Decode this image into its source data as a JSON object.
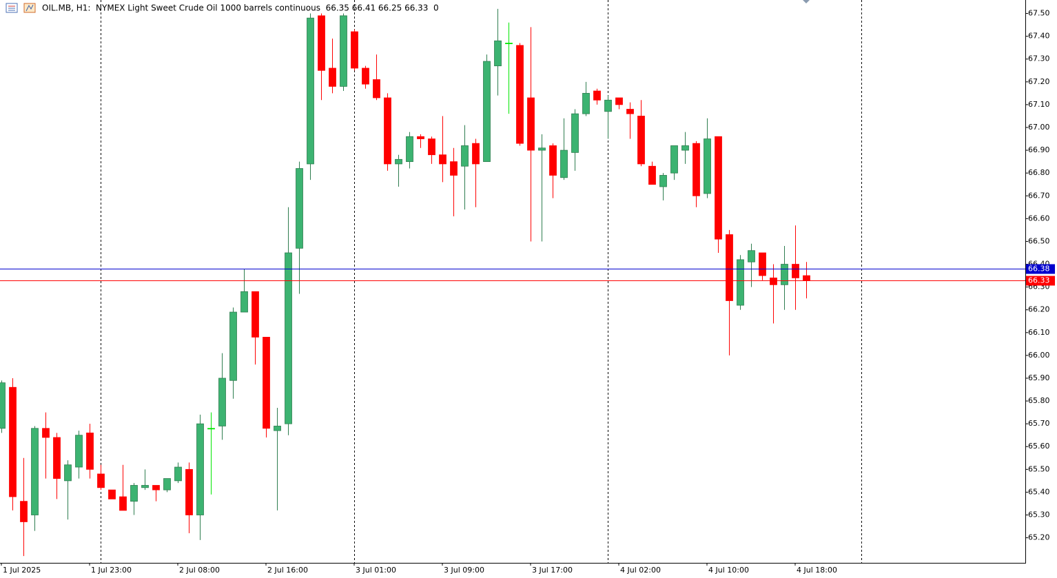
{
  "chart_data": {
    "type": "candlestick",
    "title": "OIL.MB, H1:  NYMEX Light Sweet Crude Oil 1000 barrels continuous  66.35 66.41 66.25 66.33  0",
    "categories": [
      "1 Jul 2025",
      null,
      null,
      null,
      null,
      null,
      null,
      null,
      "1 Jul 23:00",
      null,
      null,
      null,
      null,
      null,
      null,
      null,
      "2 Jul 08:00",
      null,
      null,
      null,
      null,
      null,
      null,
      null,
      "2 Jul 16:00",
      null,
      null,
      null,
      null,
      null,
      null,
      null,
      "3 Jul 01:00",
      null,
      null,
      null,
      null,
      null,
      null,
      null,
      "3 Jul 09:00",
      null,
      null,
      null,
      null,
      null,
      null,
      null,
      "3 Jul 17:00",
      null,
      null,
      null,
      null,
      null,
      null,
      null,
      "4 Jul 02:00",
      null,
      null,
      null,
      null,
      null,
      null,
      null,
      "4 Jul 10:00",
      null,
      null,
      null,
      null,
      null,
      null,
      null,
      "4 Jul 18:00",
      null
    ],
    "open": [
      65.68,
      65.86,
      65.36,
      65.3,
      65.68,
      65.64,
      65.45,
      65.51,
      65.66,
      65.48,
      65.41,
      65.38,
      65.36,
      65.42,
      65.43,
      65.41,
      65.45,
      65.5,
      65.3,
      65.68,
      65.69,
      65.89,
      66.19,
      66.28,
      66.08,
      65.67,
      65.7,
      66.47,
      66.84,
      67.49,
      67.26,
      67.18,
      67.42,
      67.26,
      67.21,
      67.13,
      66.84,
      66.85,
      66.96,
      66.95,
      66.88,
      66.85,
      66.83,
      66.93,
      66.85,
      67.27,
      67.37,
      67.36,
      67.13,
      66.9,
      66.92,
      66.78,
      66.89,
      67.06,
      67.16,
      67.07,
      67.13,
      67.08,
      67.05,
      66.83,
      66.74,
      66.8,
      66.9,
      66.93,
      66.71,
      66.96,
      66.53,
      66.22,
      66.41,
      66.45,
      66.34,
      66.31,
      66.4,
      66.35
    ],
    "high": [
      65.89,
      65.9,
      65.55,
      65.69,
      65.75,
      65.66,
      65.54,
      65.67,
      65.7,
      65.52,
      65.41,
      65.52,
      65.44,
      65.5,
      65.43,
      65.46,
      65.53,
      65.53,
      65.74,
      65.75,
      66.01,
      66.21,
      66.38,
      66.28,
      66.08,
      65.77,
      66.65,
      66.85,
      67.5,
      67.5,
      67.39,
      67.5,
      67.43,
      67.27,
      67.32,
      67.15,
      66.88,
      66.98,
      66.97,
      66.96,
      67.05,
      66.91,
      67.01,
      66.95,
      67.32,
      67.52,
      67.46,
      67.37,
      67.44,
      66.97,
      66.93,
      67.04,
      67.08,
      67.2,
      67.17,
      67.14,
      67.13,
      67.11,
      67.12,
      66.85,
      66.8,
      66.92,
      66.98,
      66.94,
      67.04,
      66.96,
      66.55,
      66.44,
      66.49,
      66.45,
      66.4,
      66.48,
      66.57,
      66.41
    ],
    "low": [
      65.66,
      65.32,
      65.12,
      65.23,
      65.46,
      65.37,
      65.28,
      65.46,
      65.46,
      65.41,
      65.37,
      65.32,
      65.3,
      65.41,
      65.36,
      65.4,
      65.44,
      65.22,
      65.19,
      65.39,
      65.63,
      65.81,
      66.19,
      65.96,
      65.64,
      65.32,
      65.65,
      66.27,
      66.77,
      67.12,
      67.15,
      67.16,
      67.25,
      67.17,
      67.12,
      66.81,
      66.74,
      66.82,
      66.91,
      66.84,
      66.76,
      66.61,
      66.64,
      66.65,
      66.85,
      67.14,
      67.06,
      66.92,
      66.5,
      66.5,
      66.69,
      66.77,
      66.81,
      67.05,
      67.1,
      66.95,
      67.08,
      66.95,
      66.83,
      66.75,
      66.68,
      66.77,
      66.84,
      66.65,
      66.69,
      66.45,
      66.0,
      66.2,
      66.3,
      66.33,
      66.14,
      66.2,
      66.2,
      66.25
    ],
    "close": [
      65.88,
      65.38,
      65.27,
      65.68,
      65.64,
      65.46,
      65.52,
      65.65,
      65.5,
      65.42,
      65.37,
      65.32,
      65.43,
      65.43,
      65.41,
      65.46,
      65.51,
      65.3,
      65.7,
      65.68,
      65.9,
      66.19,
      66.28,
      66.08,
      65.68,
      65.69,
      66.45,
      66.82,
      67.48,
      67.25,
      67.18,
      67.49,
      67.26,
      67.19,
      67.13,
      66.84,
      66.86,
      66.96,
      66.95,
      66.88,
      66.84,
      66.79,
      66.92,
      66.84,
      67.29,
      67.38,
      67.37,
      66.93,
      66.9,
      66.91,
      66.79,
      66.9,
      67.06,
      67.15,
      67.12,
      67.12,
      67.1,
      67.06,
      66.84,
      66.75,
      66.79,
      66.92,
      66.92,
      66.7,
      66.95,
      66.51,
      66.24,
      66.42,
      66.46,
      66.35,
      66.31,
      66.4,
      66.34,
      66.33
    ],
    "up_color": "#3cb371",
    "down_color": "#ff0000",
    "doji_color": "#00e600",
    "ylim": [
      65.09,
      67.55
    ],
    "yticks": [
      {
        "value": 65.2,
        "label": "65.20"
      },
      {
        "value": 65.3,
        "label": "65.30"
      },
      {
        "value": 65.4,
        "label": "65.40"
      },
      {
        "value": 65.5,
        "label": "65.50"
      },
      {
        "value": 65.6,
        "label": "65.60"
      },
      {
        "value": 65.7,
        "label": "65.70"
      },
      {
        "value": 65.8,
        "label": "65.80"
      },
      {
        "value": 65.9,
        "label": "65.90"
      },
      {
        "value": 66.0,
        "label": "66.00"
      },
      {
        "value": 66.1,
        "label": "66.10"
      },
      {
        "value": 66.2,
        "label": "66.20"
      },
      {
        "value": 66.3,
        "label": "66.30"
      },
      {
        "value": 66.4,
        "label": "66.40"
      },
      {
        "value": 66.5,
        "label": "66.50"
      },
      {
        "value": 66.6,
        "label": "66.60"
      },
      {
        "value": 66.7,
        "label": "66.70"
      },
      {
        "value": 66.8,
        "label": "66.80"
      },
      {
        "value": 66.9,
        "label": "66.90"
      },
      {
        "value": 67.0,
        "label": "67.00"
      },
      {
        "value": 67.1,
        "label": "67.10"
      },
      {
        "value": 67.2,
        "label": "67.20"
      },
      {
        "value": 67.3,
        "label": "67.30"
      },
      {
        "value": 67.4,
        "label": "67.40"
      },
      {
        "value": 67.5,
        "label": "67.50"
      }
    ],
    "price_lines": [
      {
        "value": 66.38,
        "color": "#0000cd"
      },
      {
        "value": 66.33,
        "color": "#ff0000"
      }
    ],
    "grid": false
  }
}
